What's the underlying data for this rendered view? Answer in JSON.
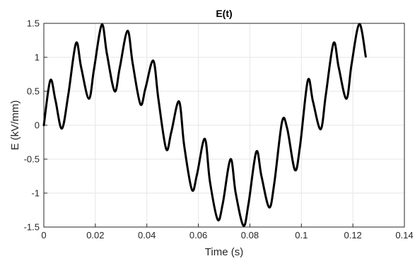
{
  "chart_data": {
    "type": "line",
    "title": "E(t)",
    "xlabel": "Time (s)",
    "ylabel": "E (kV/mm)",
    "xlim": [
      0,
      0.14
    ],
    "ylim": [
      -1.5,
      1.5
    ],
    "xticks": [
      0,
      0.02,
      0.04,
      0.06,
      0.08,
      0.1,
      0.12,
      0.14
    ],
    "xtick_labels": [
      "0",
      "0.02",
      "0.04",
      "0.06",
      "0.08",
      "0.1",
      "0.12",
      "0.14"
    ],
    "yticks": [
      -1.5,
      -1,
      -0.5,
      0,
      0.5,
      1,
      1.5
    ],
    "ytick_labels": [
      "-1.5",
      "-1",
      "-0.5",
      "0",
      "0.5",
      "1",
      "1.5"
    ],
    "grid": true,
    "series": [
      {
        "color": "#000000",
        "x": [
          0,
          0.0025,
          0.0045,
          0.007,
          0.0095,
          0.0125,
          0.0145,
          0.0175,
          0.0195,
          0.0225,
          0.0245,
          0.0275,
          0.0295,
          0.0325,
          0.0345,
          0.0375,
          0.0395,
          0.0425,
          0.0445,
          0.0475,
          0.0495,
          0.0525,
          0.0545,
          0.0575,
          0.0595,
          0.0625,
          0.0645,
          0.0675,
          0.0695,
          0.0725,
          0.0745,
          0.0775,
          0.0795,
          0.0825,
          0.0845,
          0.0875,
          0.0895,
          0.0925,
          0.0945,
          0.0975,
          0.0995,
          0.1025,
          0.1045,
          0.1075,
          0.1095,
          0.1125,
          0.1145,
          0.1175,
          0.1195,
          0.1225,
          0.125
        ],
        "y": [
          0,
          0.66,
          0.37,
          -0.05,
          0.45,
          1.21,
          0.85,
          0.39,
          0.83,
          1.48,
          1.05,
          0.5,
          0.85,
          1.39,
          0.91,
          0.31,
          0.55,
          0.95,
          0.38,
          -0.35,
          -0.1,
          0.35,
          -0.3,
          -0.95,
          -0.72,
          -0.2,
          -0.83,
          -1.39,
          -1.15,
          -0.5,
          -1.0,
          -1.48,
          -1.15,
          -0.39,
          -0.75,
          -1.21,
          -0.85,
          0.05,
          -0.05,
          -0.66,
          -0.3,
          0.66,
          0.35,
          -0.06,
          0.45,
          1.21,
          0.85,
          0.39,
          0.9,
          1.49,
          1.01
        ]
      }
    ]
  }
}
